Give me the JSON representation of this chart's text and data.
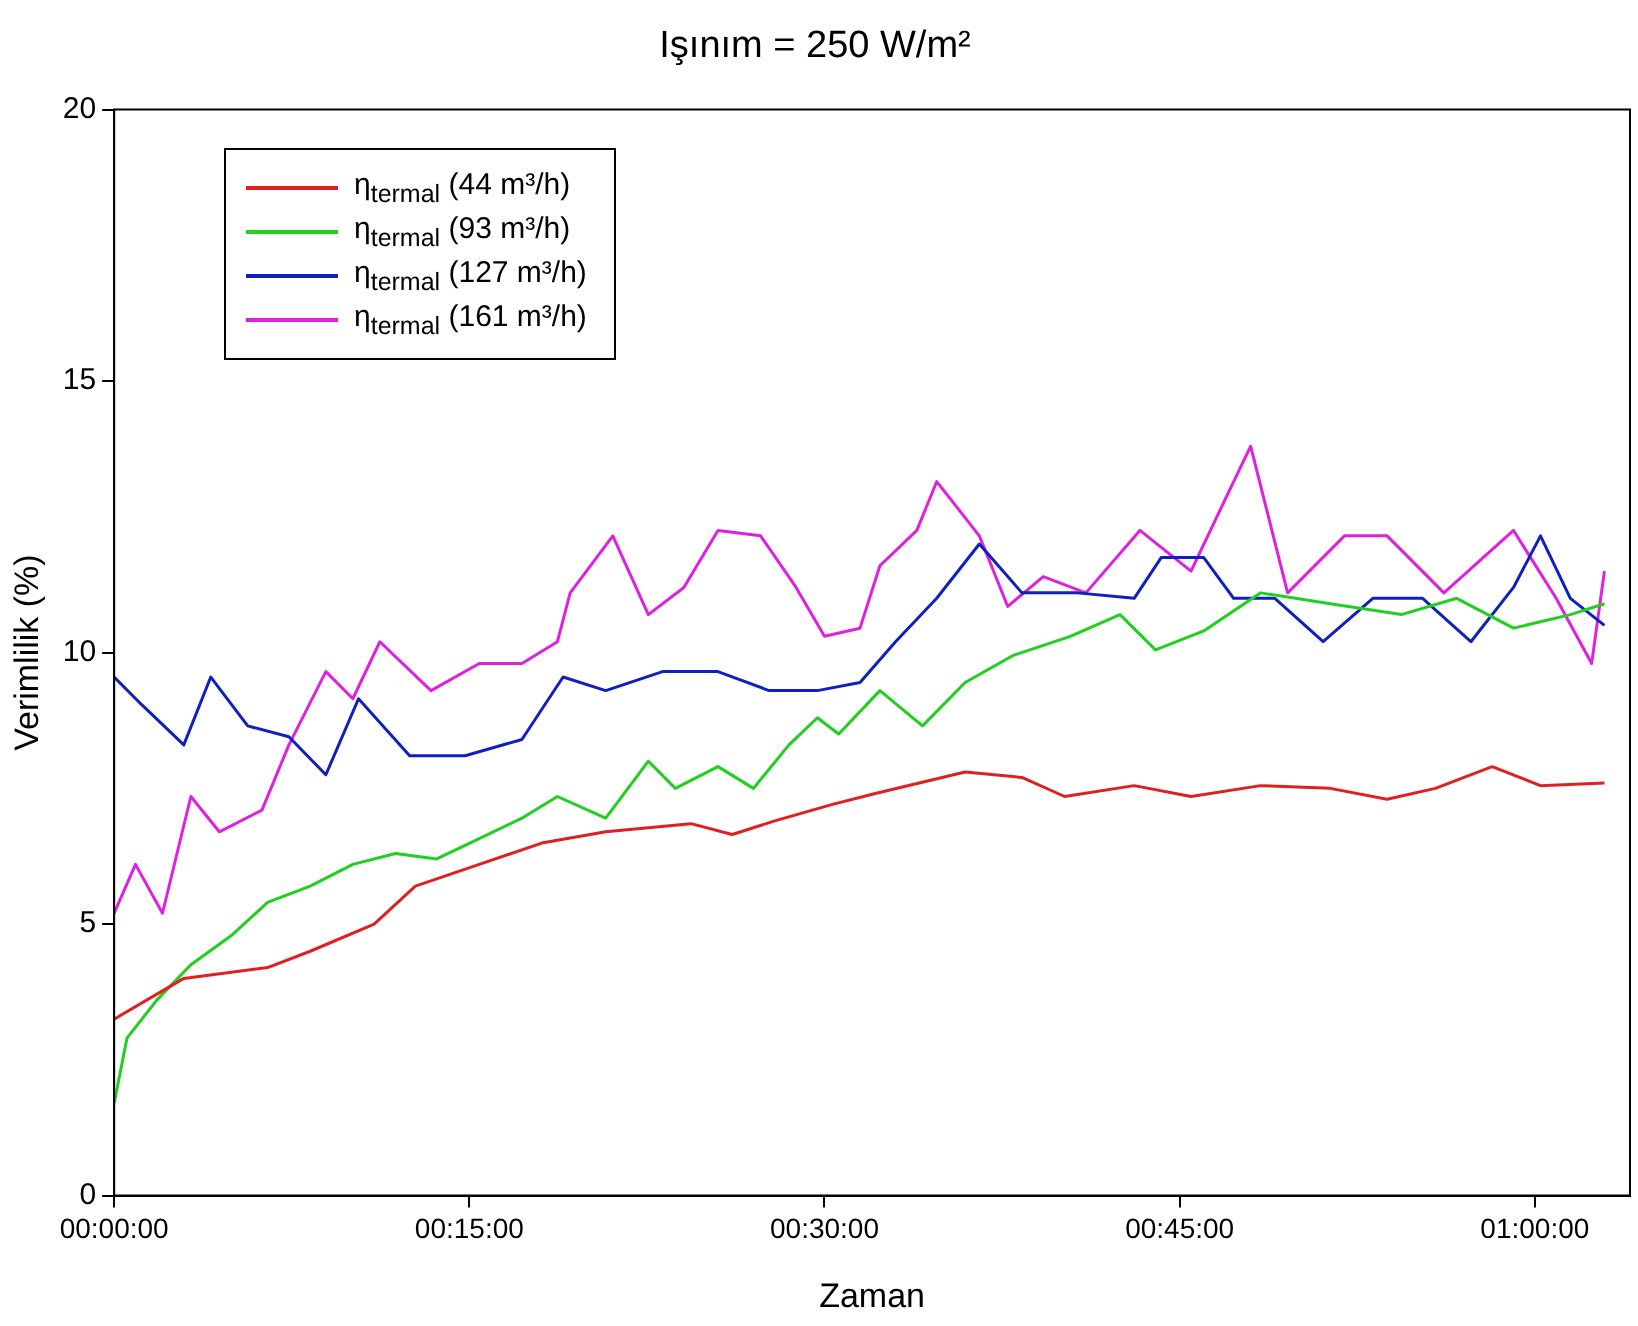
{
  "chart_data": {
    "type": "line",
    "title": "Işınım = 250 W/m²",
    "xlabel": "Zaman",
    "ylabel": "Verimlilik (%)",
    "xlim": [
      0,
      1.067
    ],
    "xticks": [
      {
        "value": 0,
        "label": "00:00:00"
      },
      {
        "value": 0.25,
        "label": "00:15:00"
      },
      {
        "value": 0.5,
        "label": "00:30:00"
      },
      {
        "value": 0.75,
        "label": "00:45:00"
      },
      {
        "value": 1,
        "label": "01:00:00"
      }
    ],
    "ylim": [
      0,
      20
    ],
    "yticks": [
      0,
      5,
      10,
      15,
      20
    ],
    "grid": false,
    "legend": "top left",
    "marker": "none",
    "line_style": "solid",
    "series": [
      {
        "name": "η$_{termal}$ (44 m³/h)",
        "color": "#e02020",
        "x": [
          0,
          0.049,
          0.108,
          0.138,
          0.183,
          0.212,
          0.257,
          0.302,
          0.346,
          0.406,
          0.435,
          0.465,
          0.505,
          0.535,
          0.599,
          0.639,
          0.669,
          0.718,
          0.758,
          0.807,
          0.856,
          0.896,
          0.93,
          0.97,
          1.004,
          1.049
        ],
        "values": [
          3.25,
          4.0,
          4.2,
          4.5,
          5.0,
          5.7,
          6.1,
          6.5,
          6.7,
          6.85,
          6.65,
          6.9,
          7.2,
          7.4,
          7.8,
          7.7,
          7.35,
          7.55,
          7.35,
          7.55,
          7.5,
          7.3,
          7.5,
          7.9,
          7.55,
          7.6
        ]
      },
      {
        "name": "η$_{termal}$ (93 m³/h)",
        "color": "#20d020",
        "x": [
          0,
          0.009,
          0.03,
          0.054,
          0.083,
          0.108,
          0.138,
          0.168,
          0.198,
          0.227,
          0.247,
          0.287,
          0.312,
          0.346,
          0.376,
          0.395,
          0.425,
          0.45,
          0.475,
          0.495,
          0.51,
          0.539,
          0.569,
          0.599,
          0.633,
          0.673,
          0.708,
          0.733,
          0.767,
          0.807,
          0.856,
          0.906,
          0.945,
          0.985,
          1.025,
          1.049
        ],
        "values": [
          1.7,
          2.9,
          3.6,
          4.25,
          4.8,
          5.4,
          5.7,
          6.1,
          6.3,
          6.2,
          6.45,
          6.95,
          7.35,
          6.95,
          8.0,
          7.5,
          7.9,
          7.5,
          8.3,
          8.8,
          8.5,
          9.3,
          8.65,
          9.45,
          9.95,
          10.3,
          10.7,
          10.05,
          10.4,
          11.1,
          10.9,
          10.7,
          11.0,
          10.45,
          10.7,
          10.9
        ]
      },
      {
        "name": "η$_{termal}$ (127 m³/h)",
        "color": "#1020c0",
        "x": [
          0,
          0.019,
          0.049,
          0.068,
          0.094,
          0.123,
          0.149,
          0.172,
          0.208,
          0.247,
          0.287,
          0.316,
          0.346,
          0.386,
          0.425,
          0.461,
          0.495,
          0.525,
          0.55,
          0.579,
          0.609,
          0.639,
          0.678,
          0.718,
          0.737,
          0.767,
          0.788,
          0.817,
          0.851,
          0.886,
          0.921,
          0.955,
          0.985,
          1.004,
          1.025,
          1.049
        ],
        "values": [
          9.55,
          9.05,
          8.3,
          9.55,
          8.65,
          8.45,
          7.75,
          9.15,
          8.1,
          8.1,
          8.4,
          9.55,
          9.3,
          9.65,
          9.65,
          9.3,
          9.3,
          9.45,
          10.2,
          11.0,
          12.0,
          11.1,
          11.1,
          11.0,
          11.75,
          11.75,
          11.0,
          11.0,
          10.2,
          11.0,
          11.0,
          10.2,
          11.2,
          12.15,
          11.0,
          10.5
        ]
      },
      {
        "name": "η$_{termal}$ (161 m³/h)",
        "color": "#e020e0",
        "x": [
          0,
          0.015,
          0.034,
          0.054,
          0.074,
          0.104,
          0.123,
          0.149,
          0.168,
          0.187,
          0.223,
          0.257,
          0.287,
          0.312,
          0.321,
          0.351,
          0.376,
          0.401,
          0.425,
          0.455,
          0.48,
          0.5,
          0.525,
          0.539,
          0.565,
          0.579,
          0.609,
          0.629,
          0.654,
          0.684,
          0.722,
          0.758,
          0.788,
          0.8,
          0.826,
          0.866,
          0.896,
          0.936,
          0.985,
          1.015,
          1.04,
          1.049
        ],
        "values": [
          5.2,
          6.1,
          5.2,
          7.35,
          6.7,
          7.1,
          8.3,
          9.65,
          9.15,
          10.2,
          9.3,
          9.8,
          9.8,
          10.2,
          11.1,
          12.15,
          10.7,
          11.2,
          12.25,
          12.15,
          11.2,
          10.3,
          10.45,
          11.6,
          12.25,
          13.15,
          12.15,
          10.85,
          11.4,
          11.1,
          12.25,
          11.5,
          13.15,
          13.8,
          11.1,
          12.15,
          12.15,
          11.1,
          12.25,
          11.0,
          9.8,
          11.5
        ]
      }
    ]
  }
}
